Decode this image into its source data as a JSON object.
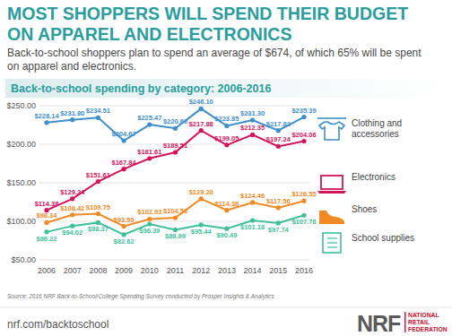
{
  "header": {
    "title": "MOST SHOPPERS WILL SPEND THEIR BUDGET ON APPAREL AND ELECTRONICS",
    "subtitle": "Back-to-school shoppers plan to spend an average of $674, of which 65% will be spent on apparel and electronics."
  },
  "chart_data": {
    "type": "line",
    "title": "Back-to-school spending by category: 2006-2016",
    "categories": [
      "2006",
      "2007",
      "2008",
      "2009",
      "2010",
      "2011",
      "2012",
      "2013",
      "2014",
      "2015",
      "2016"
    ],
    "series": [
      {
        "name": "Clothing and accessories",
        "color": "#3d8fcc",
        "marker": "circle",
        "line_style": "solid",
        "values": [
          228.14,
          231.8,
          234.51,
          204.67,
          225.47,
          220.6,
          246.1,
          223.85,
          231.3,
          217.82,
          235.39
        ],
        "value_labels": [
          "$228.14",
          "$231.80",
          "$234.51",
          "$204.67",
          "$225.47",
          "$220.60",
          "$246.10",
          "$223.85",
          "$231.30",
          "$217.82",
          "$235.39"
        ]
      },
      {
        "name": "Electronics",
        "color": "#d4145a",
        "marker": "circle",
        "line_style": "solid",
        "values": [
          114.38,
          129.24,
          151.61,
          167.84,
          181.61,
          189.51,
          217.88,
          199.05,
          212.35,
          197.24,
          204.06
        ],
        "value_labels": [
          "$114.38",
          "$129.24",
          "$151.61",
          "$167.84",
          "$181.61",
          "$189.51",
          "$217.88",
          "$199.05",
          "$212.35",
          "$197.24",
          "$204.06"
        ]
      },
      {
        "name": "Shoes",
        "color": "#f08a24",
        "marker": "circle",
        "line_style": "solid",
        "values": [
          98.34,
          108.42,
          109.75,
          93.59,
          102.93,
          104.53,
          129.2,
          114.38,
          124.46,
          117.56,
          126.55
        ],
        "value_labels": [
          "$98.34",
          "$108.42",
          "$109.75",
          "$93.59",
          "$102.93",
          "$104.53",
          "$129.20",
          "$114.38",
          "$124.46",
          "$117.56",
          "$126.55"
        ]
      },
      {
        "name": "School supplies",
        "color": "#3fbf9a",
        "marker": "circle",
        "line_style": "solid",
        "values": [
          86.22,
          94.02,
          98.37,
          82.62,
          96.39,
          88.99,
          95.44,
          90.49,
          101.18,
          97.74,
          107.76
        ],
        "value_labels": [
          "$86.22",
          "$94.02",
          "$98.37",
          "$82.62",
          "$96.39",
          "$88.99",
          "$95.44",
          "$90.49",
          "$101.18",
          "$97.74",
          "$107.76"
        ]
      }
    ],
    "ylim": [
      50,
      250
    ],
    "yticks": [
      {
        "value": 50,
        "label": "$50.00"
      },
      {
        "value": 100,
        "label": "$100.00"
      },
      {
        "value": 150,
        "label": "$150.00"
      },
      {
        "value": 200,
        "label": "$200.00"
      },
      {
        "value": 250,
        "label": "$250.00"
      }
    ],
    "grid": true,
    "legend": "right",
    "data_labels": true
  },
  "footer": {
    "source": "Source: 2016 NRF Back-to-School/College Spending Survey conducted by Prosper Insights & Analytics",
    "url": "nrf.com/backtoschool",
    "logo": "NRF",
    "logo_text": [
      "NATIONAL",
      "RETAIL",
      "FEDERATION"
    ]
  }
}
